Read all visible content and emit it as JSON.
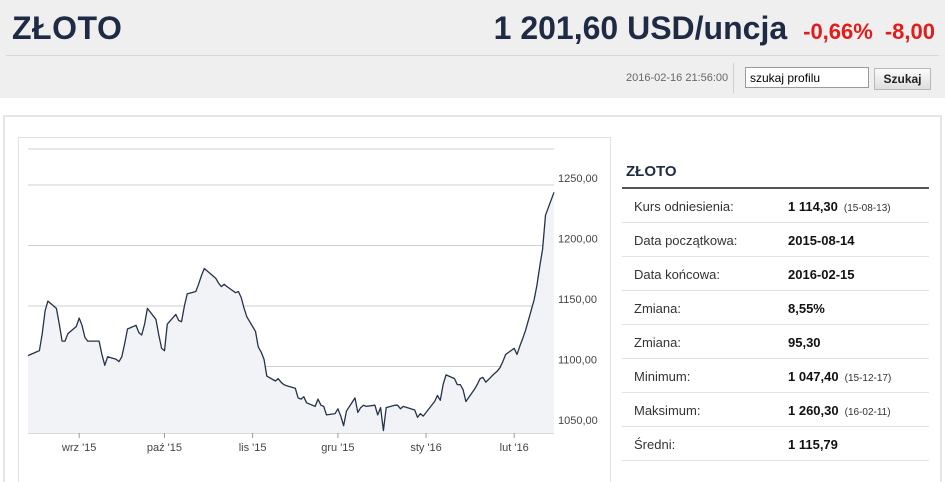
{
  "header": {
    "title": "ZŁOTO",
    "price": "1 201,60 USD/uncja",
    "change_pct": "-0,66%",
    "change_abs": "-8,00",
    "timestamp": "2016-02-16 21:56:00",
    "search_value": "szukaj profilu",
    "search_button": "Szukaj"
  },
  "colors": {
    "brand": "#1f2a44",
    "negative": "#e41b1b",
    "line": "#25324a",
    "area": "#f1f3f6"
  },
  "stats": {
    "title": "ZŁOTO",
    "rows": [
      {
        "label": "Kurs odniesienia:",
        "value": "1 114,30",
        "sub": "(15-08-13)"
      },
      {
        "label": "Data początkowa:",
        "value": "2015-08-14",
        "sub": ""
      },
      {
        "label": "Data końcowa:",
        "value": "2016-02-15",
        "sub": ""
      },
      {
        "label": "Zmiana:",
        "value": "8,55%",
        "sub": ""
      },
      {
        "label": "Zmiana:",
        "value": "95,30",
        "sub": ""
      },
      {
        "label": "Minimum:",
        "value": "1 047,40",
        "sub": "(15-12-17)"
      },
      {
        "label": "Maksimum:",
        "value": "1 260,30",
        "sub": "(16-02-11)"
      },
      {
        "label": "Średni:",
        "value": "1 115,79",
        "sub": ""
      }
    ]
  },
  "chart_data": {
    "type": "area",
    "title": "",
    "xlabel": "",
    "ylabel": "",
    "ylim": [
      1045,
      1250
    ],
    "yticks": [
      1050,
      1100,
      1150,
      1200,
      1250
    ],
    "ytick_labels": [
      "1050,00",
      "1100,00",
      "1150,00",
      "1200,00",
      "1250,00"
    ],
    "xticks": [
      "2015-09-01",
      "2015-10-01",
      "2015-11-01",
      "2015-12-01",
      "2016-01-01",
      "2016-02-01"
    ],
    "xtick_labels": [
      "wrz '15",
      "paź '15",
      "lis '15",
      "gru '15",
      "sty '16",
      "lut '16"
    ],
    "grid": true,
    "series": [
      {
        "x": [
          "2015-08-14",
          "2015-08-17",
          "2015-08-18",
          "2015-08-19",
          "2015-08-20",
          "2015-08-21",
          "2015-08-24",
          "2015-08-25",
          "2015-08-26",
          "2015-08-27",
          "2015-08-28",
          "2015-08-31",
          "2015-09-01",
          "2015-09-02",
          "2015-09-03",
          "2015-09-04",
          "2015-09-08",
          "2015-09-09",
          "2015-09-10",
          "2015-09-11",
          "2015-09-14",
          "2015-09-15",
          "2015-09-16",
          "2015-09-17",
          "2015-09-18",
          "2015-09-21",
          "2015-09-22",
          "2015-09-23",
          "2015-09-24",
          "2015-09-25",
          "2015-09-28",
          "2015-09-29",
          "2015-09-30",
          "2015-10-01",
          "2015-10-02",
          "2015-10-05",
          "2015-10-06",
          "2015-10-07",
          "2015-10-08",
          "2015-10-09",
          "2015-10-12",
          "2015-10-13",
          "2015-10-14",
          "2015-10-15",
          "2015-10-16",
          "2015-10-19",
          "2015-10-20",
          "2015-10-21",
          "2015-10-22",
          "2015-10-23",
          "2015-10-26",
          "2015-10-27",
          "2015-10-28",
          "2015-10-29",
          "2015-10-30",
          "2015-11-02",
          "2015-11-03",
          "2015-11-04",
          "2015-11-05",
          "2015-11-06",
          "2015-11-09",
          "2015-11-10",
          "2015-11-11",
          "2015-11-12",
          "2015-11-13",
          "2015-11-16",
          "2015-11-17",
          "2015-11-18",
          "2015-11-19",
          "2015-11-20",
          "2015-11-23",
          "2015-11-24",
          "2015-11-25",
          "2015-11-26",
          "2015-11-27",
          "2015-11-30",
          "2015-12-01",
          "2015-12-02",
          "2015-12-03",
          "2015-12-04",
          "2015-12-07",
          "2015-12-08",
          "2015-12-09",
          "2015-12-10",
          "2015-12-11",
          "2015-12-14",
          "2015-12-15",
          "2015-12-16",
          "2015-12-17",
          "2015-12-18",
          "2015-12-21",
          "2015-12-22",
          "2015-12-23",
          "2015-12-24",
          "2015-12-28",
          "2015-12-29",
          "2015-12-30",
          "2015-12-31",
          "2016-01-04",
          "2016-01-05",
          "2016-01-06",
          "2016-01-07",
          "2016-01-08",
          "2016-01-11",
          "2016-01-12",
          "2016-01-13",
          "2016-01-14",
          "2016-01-15",
          "2016-01-18",
          "2016-01-19",
          "2016-01-20",
          "2016-01-21",
          "2016-01-22",
          "2016-01-25",
          "2016-01-26",
          "2016-01-27",
          "2016-01-28",
          "2016-01-29",
          "2016-02-01",
          "2016-02-02",
          "2016-02-03",
          "2016-02-04",
          "2016-02-05",
          "2016-02-08",
          "2016-02-09",
          "2016-02-10",
          "2016-02-11",
          "2016-02-12",
          "2016-02-15"
        ],
        "values": [
          1109,
          1112,
          1113,
          1127,
          1146,
          1154,
          1148,
          1135,
          1121,
          1121,
          1127,
          1133,
          1140,
          1134,
          1124,
          1121,
          1121,
          1110,
          1101,
          1108,
          1106,
          1104,
          1108,
          1119,
          1131,
          1134,
          1128,
          1126,
          1135,
          1148,
          1139,
          1126,
          1115,
          1113,
          1135,
          1143,
          1138,
          1137,
          1150,
          1160,
          1162,
          1168,
          1175,
          1181,
          1179,
          1173,
          1169,
          1166,
          1168,
          1166,
          1161,
          1162,
          1157,
          1148,
          1141,
          1129,
          1116,
          1112,
          1106,
          1092,
          1088,
          1090,
          1087,
          1085,
          1084,
          1082,
          1074,
          1073,
          1075,
          1070,
          1067,
          1073,
          1068,
          1067,
          1060,
          1061,
          1065,
          1059,
          1051,
          1063,
          1074,
          1062,
          1066,
          1068,
          1067,
          1068,
          1060,
          1066,
          1047,
          1066,
          1068,
          1068,
          1065,
          1067,
          1064,
          1058,
          1061,
          1059,
          1071,
          1076,
          1072,
          1085,
          1093,
          1090,
          1085,
          1085,
          1081,
          1071,
          1081,
          1085,
          1090,
          1091,
          1087,
          1094,
          1096,
          1099,
          1104,
          1110,
          1115,
          1110,
          1117,
          1123,
          1130,
          1155,
          1167,
          1183,
          1197,
          1225,
          1244
        ]
      }
    ]
  }
}
